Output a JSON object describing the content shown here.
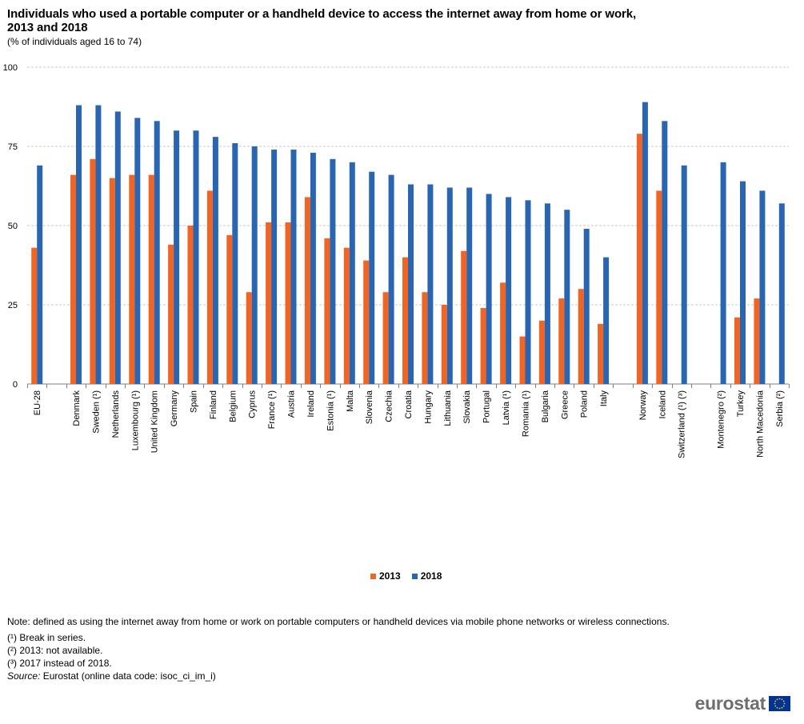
{
  "title": "Individuals who used a portable computer or a handheld device to access the internet away from home or work, 2013 and 2018",
  "subtitle": "(% of individuals  aged 16 to 74)",
  "legend": {
    "label_2013": "2013",
    "label_2018": "2018"
  },
  "colors": {
    "series_2013": "#f06424",
    "series_2018": "#2a65b1",
    "grid": "#c8c8c8",
    "axis": "#808080"
  },
  "notes": {
    "main": "Note: defined as using the internet away from home or work on portable computers or handheld devices via mobile phone networks or wireless connections.",
    "n1": "(¹) Break in series.",
    "n2": "(²) 2013: not available.",
    "n3": "(³) 2017 instead of 2018.",
    "source_label": "Source:",
    "source_text": " Eurostat (online data code: isoc_ci_im_i)"
  },
  "logo": {
    "text": "eurostat",
    "icon": "eu-flag-icon"
  },
  "chart_data": {
    "type": "bar",
    "title": "Individuals who used a portable computer or a handheld device to access the internet away from home or work, 2013 and 2018",
    "subtitle": "(% of individuals  aged 16 to 74)",
    "xlabel": "",
    "ylabel": "",
    "ylim": [
      0,
      100
    ],
    "yticks": [
      0,
      25,
      50,
      75,
      100
    ],
    "grid": "horizontal dashed",
    "legend_position": "bottom-center",
    "categories": [
      "EU-28",
      "",
      "Denmark",
      "Sweden (¹)",
      "Netherlands",
      "Luxembourg (¹)",
      "United Kingdom",
      "Germany",
      "Spain",
      "Finland",
      "Belgium",
      "Cyprus",
      "France (¹)",
      "Austria",
      "Ireland",
      "Estonia (¹)",
      "Malta",
      "Slovenia",
      "Czechia",
      "Croatia",
      "Hungary",
      "Lithuania",
      "Slovakia",
      "Portugal",
      "Latvia (¹)",
      "Romania (¹)",
      "Bulgaria",
      "Greece",
      "Poland",
      "Italy",
      "",
      "Norway",
      "Iceland",
      "Switzerland (¹) (³)",
      "",
      "Montenegro (²)",
      "Turkey",
      "North Macedonia",
      "Serbia (²)"
    ],
    "series": [
      {
        "name": "2013",
        "values": [
          43,
          null,
          66,
          71,
          65,
          66,
          66,
          44,
          50,
          61,
          47,
          29,
          51,
          51,
          59,
          46,
          43,
          39,
          29,
          40,
          29,
          25,
          42,
          24,
          32,
          15,
          20,
          27,
          30,
          19,
          null,
          79,
          61,
          null,
          null,
          null,
          21,
          27,
          null
        ]
      },
      {
        "name": "2018",
        "values": [
          69,
          null,
          88,
          88,
          86,
          84,
          83,
          80,
          80,
          78,
          76,
          75,
          74,
          74,
          73,
          71,
          70,
          67,
          66,
          63,
          63,
          62,
          62,
          60,
          59,
          58,
          57,
          55,
          49,
          40,
          null,
          89,
          83,
          69,
          null,
          70,
          64,
          61,
          57
        ]
      }
    ]
  }
}
